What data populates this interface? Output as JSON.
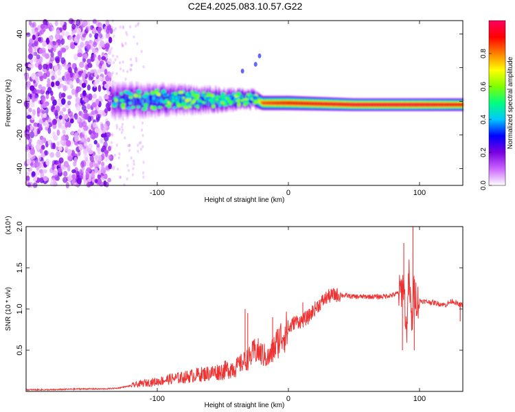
{
  "title": "C2E4.2025.083.10.57.G22",
  "chart_data": [
    {
      "type": "heatmap",
      "title": "C2E4.2025.083.10.57.G22",
      "xlabel": "Height of straight line (km)",
      "ylabel": "Frequency (Hz)",
      "xlim": [
        -200,
        133
      ],
      "ylim": [
        -50,
        48
      ],
      "x_ticks": [
        -100,
        0,
        100
      ],
      "y_ticks": [
        40,
        20,
        0,
        -20,
        -40
      ],
      "colorbar": {
        "label": "Normalized spectral amplitude",
        "range": [
          0,
          1
        ],
        "ticks": [
          0.0,
          0.2,
          0.4,
          0.6,
          0.8
        ],
        "colormap": [
          "#ffffff",
          "#cc66ff",
          "#7a00e0",
          "#0000ff",
          "#00c8ff",
          "#00ff80",
          "#80ff00",
          "#ffff00",
          "#ff8000",
          "#ff0000",
          "#ff0060"
        ]
      },
      "noise_region": {
        "x": [
          -200,
          -135
        ],
        "y": [
          -50,
          48
        ],
        "amplitude": [
          0.0,
          0.2
        ]
      },
      "signal_band": [
        {
          "x": -135,
          "center": 0,
          "half_width": 10,
          "amplitude": 0.3
        },
        {
          "x": -100,
          "center": 1,
          "half_width": 9,
          "amplitude": 0.4
        },
        {
          "x": -60,
          "center": 1,
          "half_width": 7,
          "amplitude": 0.45
        },
        {
          "x": -25,
          "center": 1,
          "half_width": 5,
          "amplitude": 0.5
        },
        {
          "x": -20,
          "center": -1,
          "half_width": 4,
          "amplitude": 0.85
        },
        {
          "x": 0,
          "center": -1,
          "half_width": 4,
          "amplitude": 0.9
        },
        {
          "x": 50,
          "center": -2,
          "half_width": 3.5,
          "amplitude": 0.95
        },
        {
          "x": 100,
          "center": -2,
          "half_width": 3.5,
          "amplitude": 0.95
        },
        {
          "x": 133,
          "center": -2,
          "half_width": 3.5,
          "amplitude": 0.9
        }
      ],
      "secondary_trace": {
        "x": [
          -35,
          -25,
          -22
        ],
        "y": [
          18,
          22,
          27
        ],
        "amplitude": 0.3
      }
    },
    {
      "type": "line",
      "xlabel": "Height of straight line (km)",
      "ylabel": "SNR (10 * v/v)",
      "y_multiplier_label": "(x10⁴)",
      "xlim": [
        -200,
        133
      ],
      "ylim": [
        0,
        2.0
      ],
      "x_ticks": [
        -100,
        0,
        100
      ],
      "y_ticks": [
        0.5,
        1.0,
        1.5,
        2.0
      ],
      "y_tick_labels": [
        "0.5",
        "1.0",
        "1.5",
        "2.0"
      ],
      "color": "#ee3333",
      "series": [
        {
          "x": [
            -200,
            -180,
            -160,
            -140,
            -130,
            -120,
            -110,
            -100,
            -90,
            -80,
            -70,
            -60,
            -50,
            -40,
            -35,
            -30,
            -25,
            -20,
            -15,
            -10,
            -5,
            0,
            5,
            10,
            15,
            20,
            25,
            30,
            35,
            40,
            50,
            60,
            70,
            80,
            85,
            88,
            90,
            92,
            94,
            96,
            98,
            100,
            110,
            120,
            125,
            130,
            133
          ],
          "y": [
            0.02,
            0.02,
            0.03,
            0.03,
            0.04,
            0.07,
            0.1,
            0.12,
            0.15,
            0.17,
            0.2,
            0.22,
            0.25,
            0.3,
            0.35,
            0.4,
            0.5,
            0.45,
            0.4,
            0.55,
            0.68,
            0.75,
            0.85,
            0.85,
            0.9,
            1.0,
            1.08,
            1.15,
            1.17,
            1.17,
            1.15,
            1.15,
            1.15,
            1.17,
            1.2,
            1.3,
            0.7,
            1.4,
            0.8,
            1.25,
            1.1,
            1.1,
            1.08,
            1.05,
            1.1,
            1.05,
            1.05
          ]
        }
      ],
      "spikes": [
        {
          "x": -33,
          "y": 1.0
        },
        {
          "x": -31,
          "y": 0.95
        },
        {
          "x": -12,
          "y": 0.9
        },
        {
          "x": 11,
          "y": 1.08
        },
        {
          "x": 88,
          "y": 1.8
        },
        {
          "x": 87,
          "y": 0.5
        },
        {
          "x": 95,
          "y": 2.0
        },
        {
          "x": 96,
          "y": 0.5
        },
        {
          "x": 131,
          "y": 0.85
        }
      ]
    }
  ]
}
